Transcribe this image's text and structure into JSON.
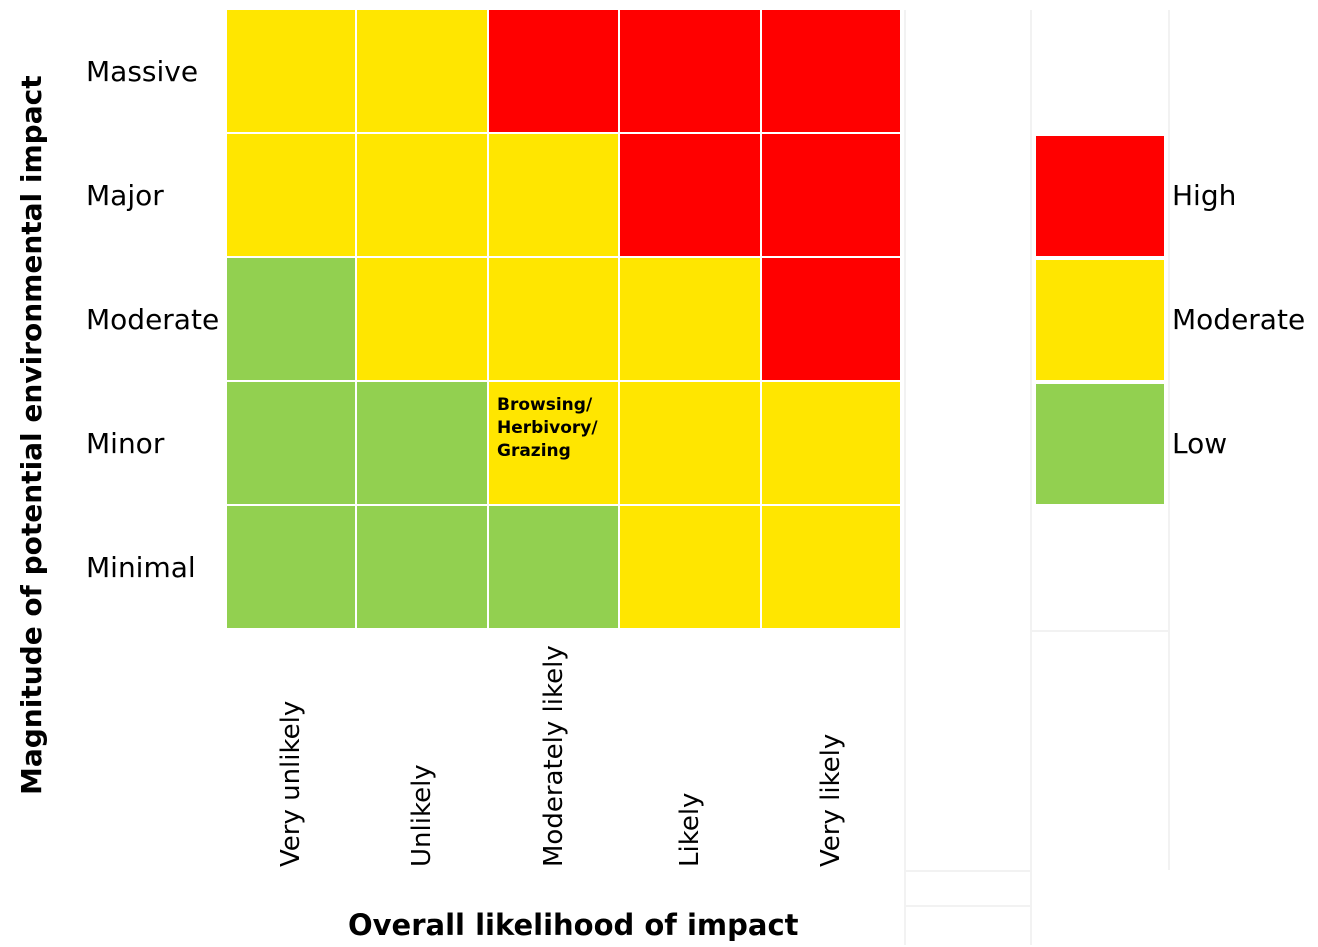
{
  "chart_data": {
    "type": "heatmap",
    "ylabel": "Magnitude of potential environmental impact",
    "xlabel": "Overall likelihood of impact",
    "rows": [
      "Massive",
      "Major",
      "Moderate",
      "Minor",
      "Minimal"
    ],
    "columns": [
      "Very unlikely",
      "Unlikely",
      "Moderately likely",
      "Likely",
      "Very likely"
    ],
    "matrix": [
      [
        "Moderate",
        "Moderate",
        "High",
        "High",
        "High"
      ],
      [
        "Moderate",
        "Moderate",
        "Moderate",
        "High",
        "High"
      ],
      [
        "Low",
        "Moderate",
        "Moderate",
        "Moderate",
        "High"
      ],
      [
        "Low",
        "Low",
        "Moderate",
        "Moderate",
        "Moderate"
      ],
      [
        "Low",
        "Low",
        "Low",
        "Moderate",
        "Moderate"
      ]
    ],
    "annotation": {
      "row": "Minor",
      "column": "Moderately likely",
      "lines": [
        "Browsing/",
        "Herbivory/",
        "Grazing"
      ]
    },
    "legend": [
      {
        "label": "High",
        "color": "#ff0000"
      },
      {
        "label": "Moderate",
        "color": "#ffe600"
      },
      {
        "label": "Low",
        "color": "#92d050"
      }
    ],
    "legend_placement": "right"
  }
}
